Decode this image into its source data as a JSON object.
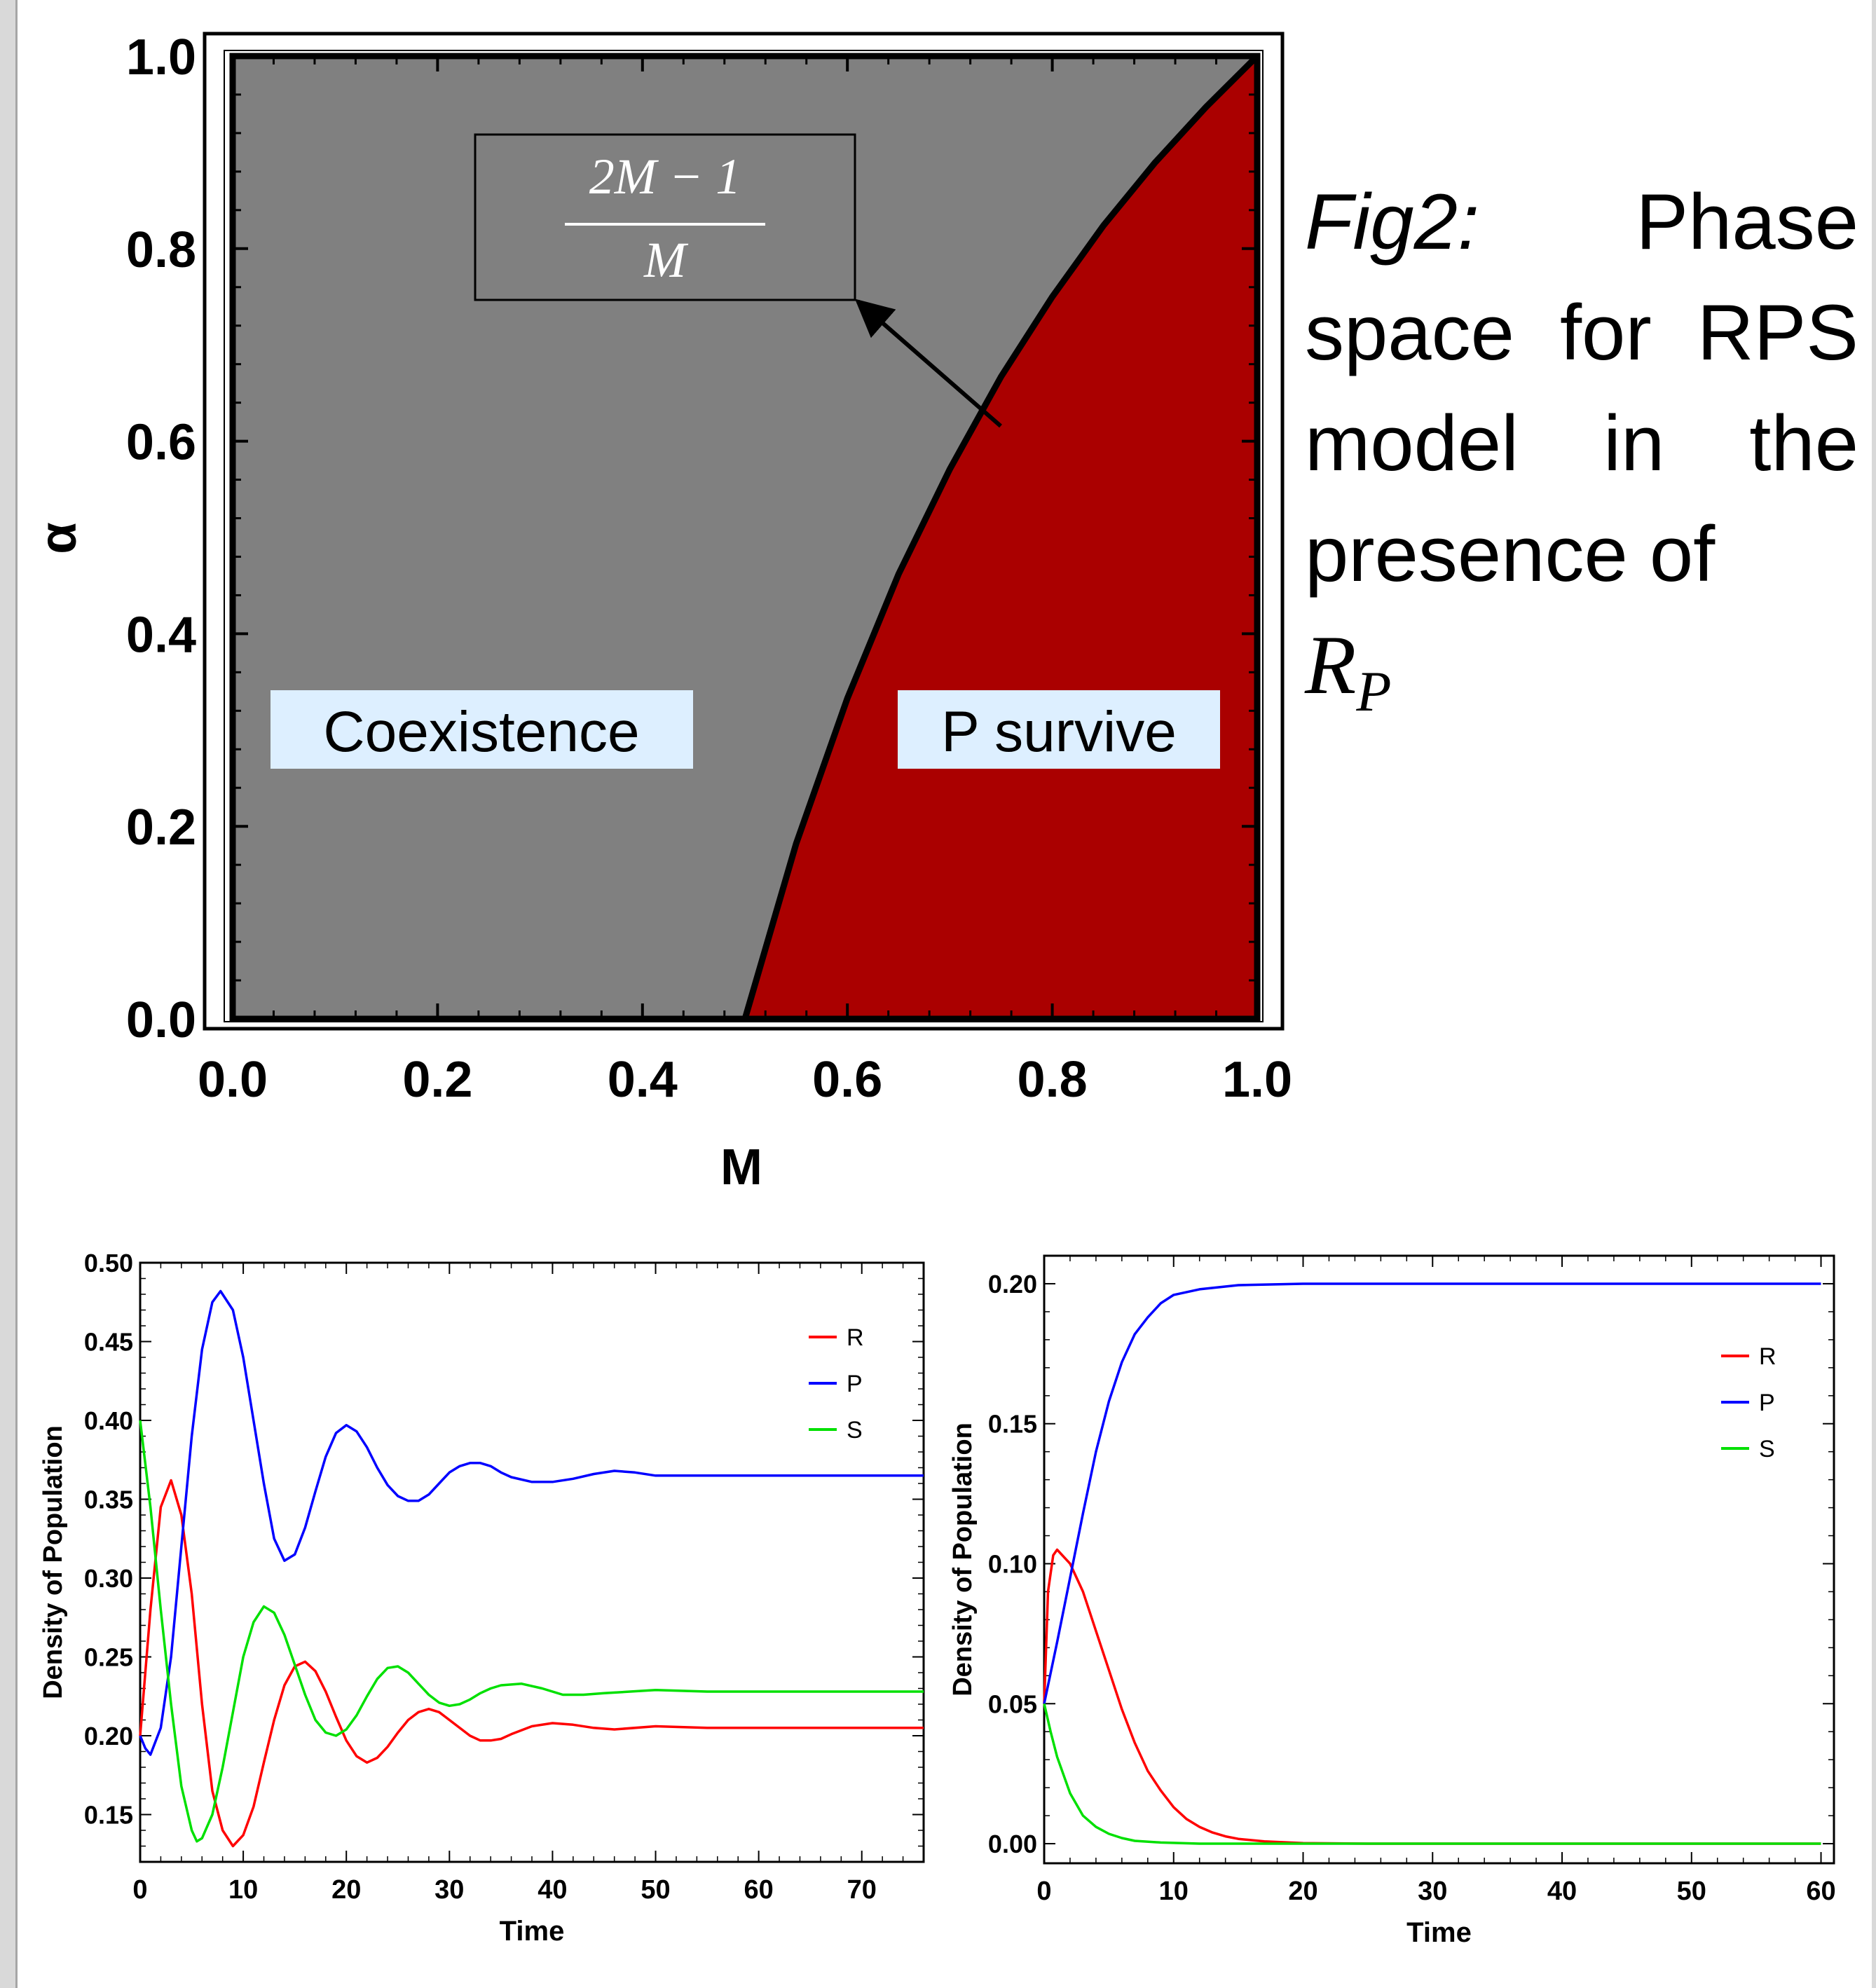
{
  "caption": {
    "fig_label": "Fig2:",
    "text": "Phase space for RPS model in the presence of",
    "math_var": "R",
    "math_sub": "P"
  },
  "chart_data": [
    {
      "type": "area",
      "title": "",
      "xlabel": "M",
      "ylabel": "α",
      "xlim": [
        0,
        1
      ],
      "ylim": [
        0,
        1
      ],
      "xticks": [
        "0.0",
        "0.2",
        "0.4",
        "0.6",
        "0.8",
        "1.0"
      ],
      "yticks": [
        "0.0",
        "0.2",
        "0.4",
        "0.6",
        "0.8",
        "1.0"
      ],
      "boundary": {
        "formula_numerator": "2M − 1",
        "formula_denominator": "M",
        "points": [
          {
            "x": 0.5,
            "y": 0.0
          },
          {
            "x": 0.55,
            "y": 0.182
          },
          {
            "x": 0.6,
            "y": 0.333
          },
          {
            "x": 0.65,
            "y": 0.462
          },
          {
            "x": 0.7,
            "y": 0.571
          },
          {
            "x": 0.75,
            "y": 0.667
          },
          {
            "x": 0.8,
            "y": 0.75
          },
          {
            "x": 0.85,
            "y": 0.824
          },
          {
            "x": 0.9,
            "y": 0.889
          },
          {
            "x": 0.95,
            "y": 0.947
          },
          {
            "x": 1.0,
            "y": 1.0
          }
        ]
      },
      "regions": [
        {
          "label": "Coexistence",
          "color": "#808080"
        },
        {
          "label": "P survive",
          "color": "#aa0000"
        }
      ]
    },
    {
      "type": "line",
      "title": "",
      "xlabel": "Time",
      "ylabel": "Density of Population",
      "xlim": [
        0,
        76
      ],
      "ylim": [
        0.12,
        0.5
      ],
      "xticks": [
        "0",
        "10",
        "20",
        "30",
        "40",
        "50",
        "60",
        "70"
      ],
      "yticks": [
        "0.15",
        "0.20",
        "0.25",
        "0.30",
        "0.35",
        "0.40",
        "0.45",
        "0.50"
      ],
      "legend_position": "top-right",
      "series": [
        {
          "name": "R",
          "color": "#ff0000",
          "points": [
            [
              0,
              0.2
            ],
            [
              1,
              0.28
            ],
            [
              2,
              0.345
            ],
            [
              3,
              0.362
            ],
            [
              4,
              0.34
            ],
            [
              5,
              0.29
            ],
            [
              6,
              0.22
            ],
            [
              7,
              0.165
            ],
            [
              8,
              0.14
            ],
            [
              9,
              0.13
            ],
            [
              10,
              0.137
            ],
            [
              11,
              0.155
            ],
            [
              12,
              0.183
            ],
            [
              13,
              0.21
            ],
            [
              14,
              0.232
            ],
            [
              15,
              0.244
            ],
            [
              16,
              0.247
            ],
            [
              17,
              0.241
            ],
            [
              18,
              0.228
            ],
            [
              19,
              0.212
            ],
            [
              20,
              0.197
            ],
            [
              21,
              0.187
            ],
            [
              22,
              0.183
            ],
            [
              23,
              0.186
            ],
            [
              24,
              0.193
            ],
            [
              25,
              0.202
            ],
            [
              26,
              0.21
            ],
            [
              27,
              0.215
            ],
            [
              28,
              0.217
            ],
            [
              29,
              0.215
            ],
            [
              30,
              0.21
            ],
            [
              31,
              0.205
            ],
            [
              32,
              0.2
            ],
            [
              33,
              0.197
            ],
            [
              34,
              0.197
            ],
            [
              35,
              0.198
            ],
            [
              36,
              0.201
            ],
            [
              38,
              0.206
            ],
            [
              40,
              0.208
            ],
            [
              42,
              0.207
            ],
            [
              44,
              0.205
            ],
            [
              46,
              0.204
            ],
            [
              50,
              0.206
            ],
            [
              55,
              0.205
            ],
            [
              60,
              0.205
            ],
            [
              76,
              0.205
            ]
          ]
        },
        {
          "name": "P",
          "color": "#0000ff",
          "points": [
            [
              0,
              0.2
            ],
            [
              0.5,
              0.192
            ],
            [
              1,
              0.188
            ],
            [
              2,
              0.205
            ],
            [
              3,
              0.25
            ],
            [
              4,
              0.32
            ],
            [
              5,
              0.39
            ],
            [
              6,
              0.445
            ],
            [
              7,
              0.475
            ],
            [
              7.8,
              0.482
            ],
            [
              9,
              0.47
            ],
            [
              10,
              0.44
            ],
            [
              11,
              0.4
            ],
            [
              12,
              0.36
            ],
            [
              13,
              0.325
            ],
            [
              14,
              0.311
            ],
            [
              15,
              0.315
            ],
            [
              16,
              0.332
            ],
            [
              17,
              0.355
            ],
            [
              18,
              0.377
            ],
            [
              19,
              0.392
            ],
            [
              20,
              0.397
            ],
            [
              21,
              0.393
            ],
            [
              22,
              0.383
            ],
            [
              23,
              0.37
            ],
            [
              24,
              0.359
            ],
            [
              25,
              0.352
            ],
            [
              26,
              0.349
            ],
            [
              27,
              0.349
            ],
            [
              28,
              0.353
            ],
            [
              29,
              0.36
            ],
            [
              30,
              0.367
            ],
            [
              31,
              0.371
            ],
            [
              32,
              0.373
            ],
            [
              33,
              0.373
            ],
            [
              34,
              0.371
            ],
            [
              35,
              0.367
            ],
            [
              36,
              0.364
            ],
            [
              38,
              0.361
            ],
            [
              40,
              0.361
            ],
            [
              42,
              0.363
            ],
            [
              44,
              0.366
            ],
            [
              46,
              0.368
            ],
            [
              48,
              0.367
            ],
            [
              50,
              0.365
            ],
            [
              55,
              0.365
            ],
            [
              76,
              0.365
            ]
          ]
        },
        {
          "name": "S",
          "color": "#00e000",
          "points": [
            [
              0,
              0.4
            ],
            [
              1,
              0.345
            ],
            [
              2,
              0.28
            ],
            [
              3,
              0.22
            ],
            [
              4,
              0.168
            ],
            [
              5,
              0.14
            ],
            [
              5.5,
              0.133
            ],
            [
              6,
              0.135
            ],
            [
              7,
              0.15
            ],
            [
              8,
              0.18
            ],
            [
              9,
              0.215
            ],
            [
              10,
              0.25
            ],
            [
              11,
              0.272
            ],
            [
              12,
              0.282
            ],
            [
              13,
              0.278
            ],
            [
              14,
              0.264
            ],
            [
              15,
              0.245
            ],
            [
              16,
              0.226
            ],
            [
              17,
              0.21
            ],
            [
              18,
              0.202
            ],
            [
              19,
              0.2
            ],
            [
              20,
              0.204
            ],
            [
              21,
              0.213
            ],
            [
              22,
              0.225
            ],
            [
              23,
              0.236
            ],
            [
              24,
              0.243
            ],
            [
              25,
              0.244
            ],
            [
              26,
              0.24
            ],
            [
              27,
              0.233
            ],
            [
              28,
              0.226
            ],
            [
              29,
              0.221
            ],
            [
              30,
              0.219
            ],
            [
              31,
              0.22
            ],
            [
              32,
              0.223
            ],
            [
              33,
              0.227
            ],
            [
              34,
              0.23
            ],
            [
              35,
              0.232
            ],
            [
              37,
              0.233
            ],
            [
              39,
              0.23
            ],
            [
              41,
              0.226
            ],
            [
              43,
              0.226
            ],
            [
              45,
              0.227
            ],
            [
              50,
              0.229
            ],
            [
              55,
              0.228
            ],
            [
              76,
              0.228
            ]
          ]
        }
      ]
    },
    {
      "type": "line",
      "title": "",
      "xlabel": "Time",
      "ylabel": "Density of Population",
      "xlim": [
        0,
        61
      ],
      "ylim": [
        -0.007,
        0.21
      ],
      "xticks": [
        "0",
        "10",
        "20",
        "30",
        "40",
        "50",
        "60"
      ],
      "yticks": [
        "0.00",
        "0.05",
        "0.10",
        "0.15",
        "0.20"
      ],
      "legend_position": "top-right",
      "series": [
        {
          "name": "R",
          "color": "#ff0000",
          "points": [
            [
              0,
              0.05
            ],
            [
              0.3,
              0.09
            ],
            [
              0.7,
              0.103
            ],
            [
              1,
              0.105
            ],
            [
              2,
              0.1
            ],
            [
              3,
              0.09
            ],
            [
              4,
              0.076
            ],
            [
              5,
              0.062
            ],
            [
              6,
              0.048
            ],
            [
              7,
              0.036
            ],
            [
              8,
              0.026
            ],
            [
              9,
              0.019
            ],
            [
              10,
              0.013
            ],
            [
              11,
              0.0088
            ],
            [
              12,
              0.006
            ],
            [
              13,
              0.004
            ],
            [
              14,
              0.0026
            ],
            [
              15,
              0.0017
            ],
            [
              17,
              0.0008
            ],
            [
              20,
              0.0002
            ],
            [
              25,
              0.0
            ],
            [
              60,
              0.0
            ]
          ]
        },
        {
          "name": "P",
          "color": "#0000ff",
          "points": [
            [
              0,
              0.05
            ],
            [
              1,
              0.072
            ],
            [
              2,
              0.095
            ],
            [
              3,
              0.118
            ],
            [
              4,
              0.14
            ],
            [
              5,
              0.158
            ],
            [
              6,
              0.172
            ],
            [
              7,
              0.182
            ],
            [
              8,
              0.188
            ],
            [
              9,
              0.193
            ],
            [
              10,
              0.196
            ],
            [
              12,
              0.198
            ],
            [
              15,
              0.1995
            ],
            [
              20,
              0.2
            ],
            [
              60,
              0.2
            ]
          ]
        },
        {
          "name": "S",
          "color": "#00e000",
          "points": [
            [
              0,
              0.05
            ],
            [
              0.5,
              0.04
            ],
            [
              1,
              0.031
            ],
            [
              2,
              0.018
            ],
            [
              3,
              0.01
            ],
            [
              4,
              0.006
            ],
            [
              5,
              0.0035
            ],
            [
              6,
              0.002
            ],
            [
              7,
              0.001
            ],
            [
              9,
              0.0004
            ],
            [
              12,
              0.0
            ],
            [
              60,
              0.0
            ]
          ]
        }
      ]
    }
  ]
}
